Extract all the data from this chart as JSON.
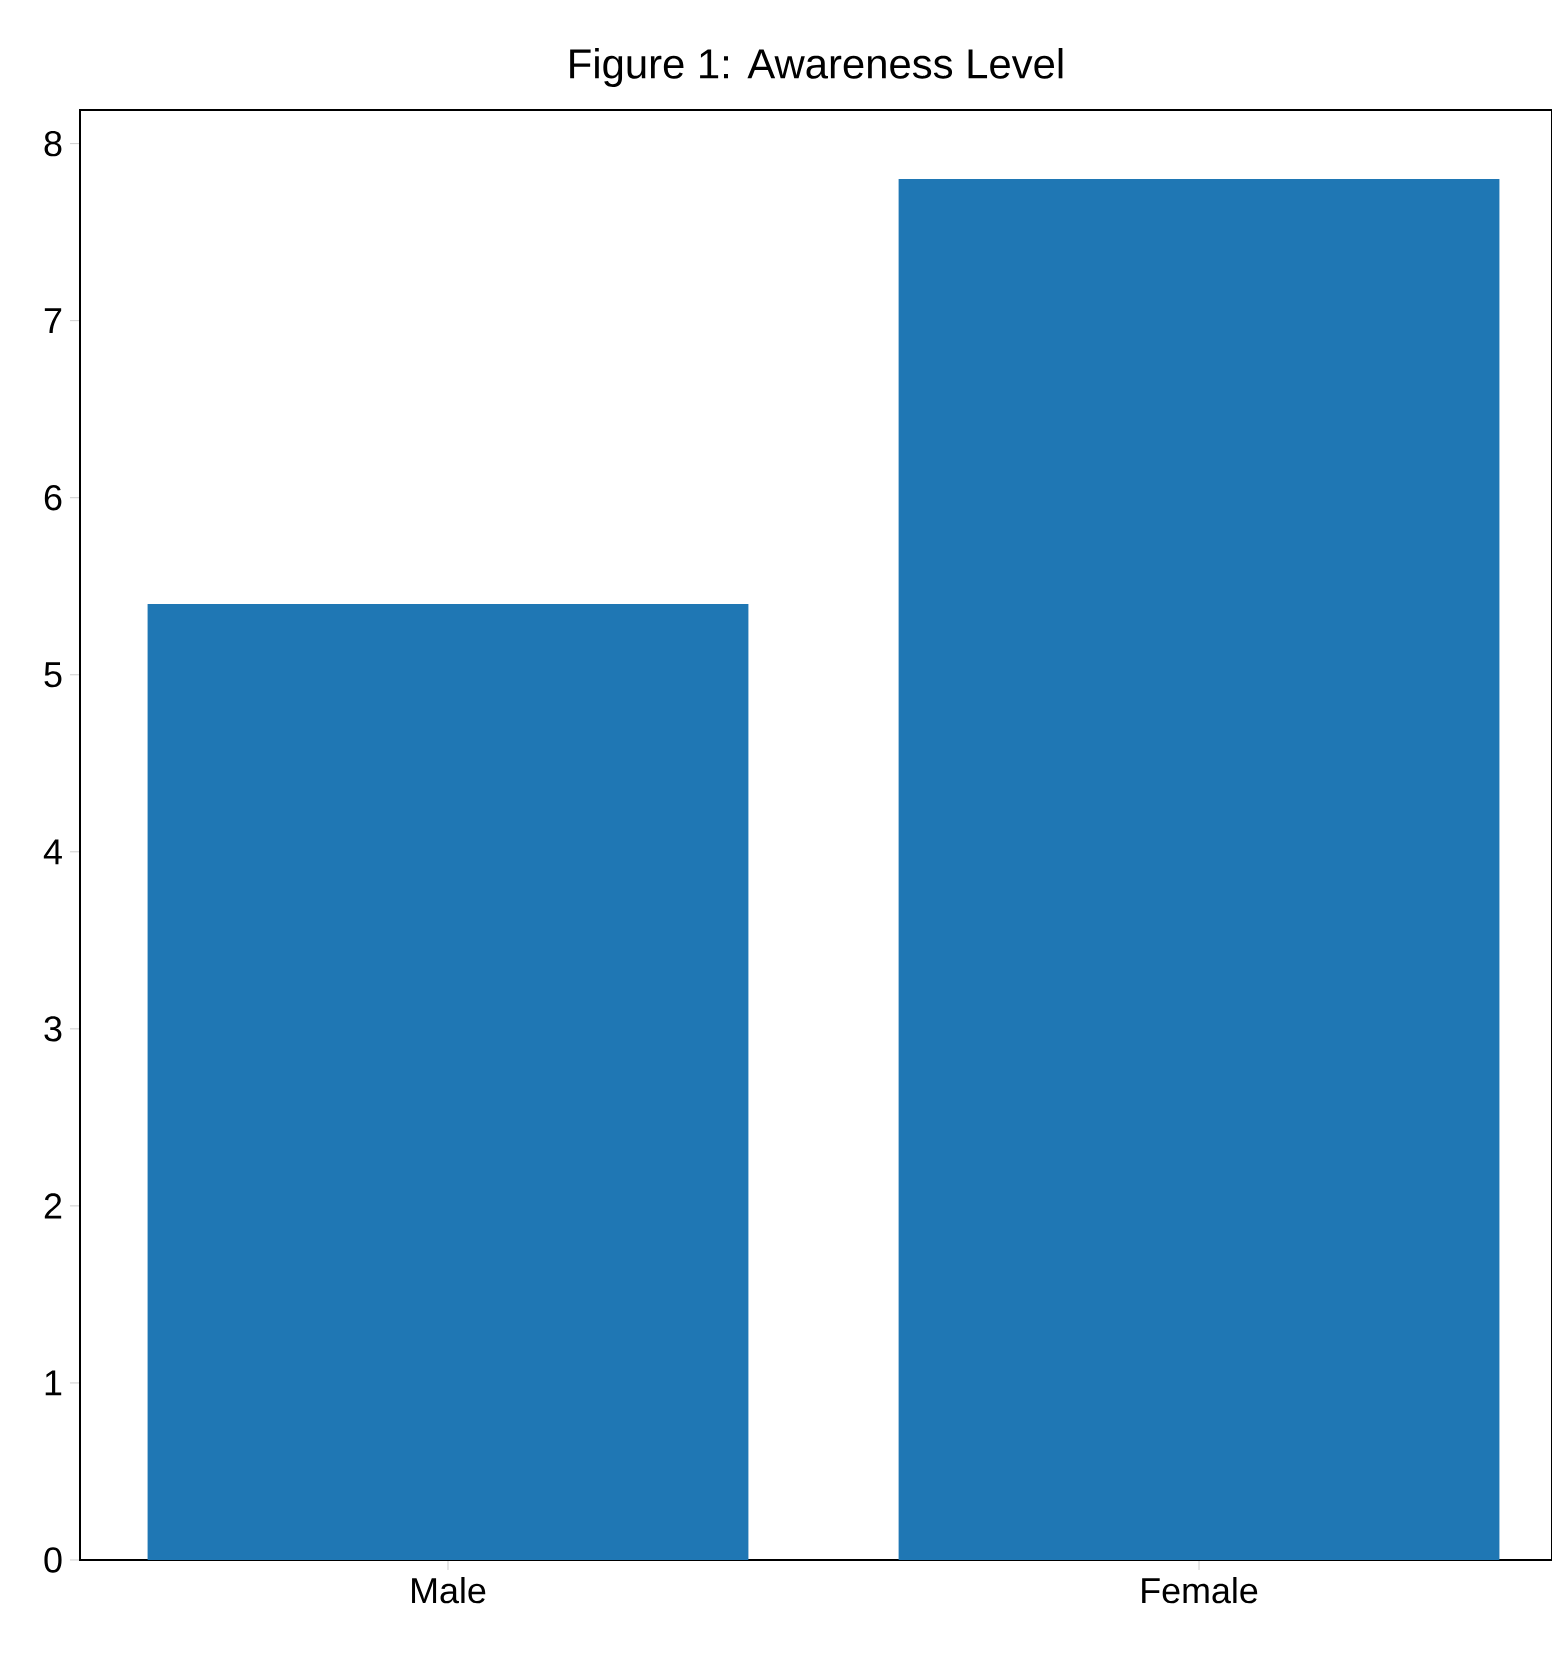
{
  "chart_data": {
    "type": "bar",
    "title": "Figure 1: Awareness Level",
    "categories": [
      "Male",
      "Female"
    ],
    "values": [
      5.4,
      7.8
    ],
    "color": "#1f77b4",
    "ylim": [
      0,
      8.19
    ],
    "yticks": [
      0,
      1,
      2,
      3,
      4,
      5,
      6,
      7,
      8
    ]
  }
}
